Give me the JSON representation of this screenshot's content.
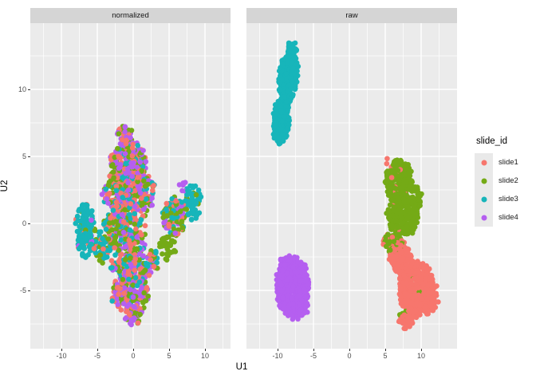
{
  "chart_data": {
    "type": "scatter",
    "title": "",
    "xlabel": "U1",
    "ylabel": "U2",
    "facets": [
      "normalized",
      "raw"
    ],
    "facet_variable_values": [
      "normalized",
      "raw"
    ],
    "x_ticks": [
      -10,
      -5,
      0,
      5,
      10
    ],
    "y_ticks": [
      10,
      5,
      0,
      -5
    ],
    "xlim": [
      -14.3,
      15.0
    ],
    "ylim": [
      -9.3,
      14.9
    ],
    "grid": "on",
    "panel_bg": "#ebebeb",
    "strip_bg": "#d5d5d5",
    "grid_color": "#ffffff",
    "tick_color": "#333333",
    "tick_label_color": "#4d4d4d",
    "point_radius_px": 3.3,
    "legend": {
      "title": "slide_id",
      "position": "right",
      "items": [
        {
          "label": "slide1",
          "color": "#f7766d"
        },
        {
          "label": "slide2",
          "color": "#74aa16"
        },
        {
          "label": "slide3",
          "color": "#17b5ba"
        },
        {
          "label": "slide4",
          "color": "#b55ff0"
        }
      ]
    },
    "series_colors": {
      "slide1": "#f7766d",
      "slide2": "#74aa16",
      "slide3": "#17b5ba",
      "slide4": "#b55ff0"
    },
    "cluster_summary": {
      "normalized": "all four slides intermixed in one large irregular blob spanning x -8.5..10, y -7.7..7.6, with a teal-dominant patch near (-6.7,-0.5), a right appendage near (5.7,0.5) and a teal tip near (8.3,1.6)",
      "raw": "slides separate by batch: slide3 teal elongated cluster x -11..-6.5 y 6..13.6; slide4 purple round cluster x -10.5..-5.4 y -7.4..-2.3; slide2 green cluster x 4.5..10.3 y -2.2..5.1; slide1 red cluster x 5..12.6 y -8..-1 with slight red/green intermixing at their boundary"
    },
    "clusters": {
      "normalized": [
        {
          "s": "slide1",
          "n": 60,
          "cx": -0.6,
          "cy": 4.6,
          "rx": 2.6,
          "ry": 1.5
        },
        {
          "s": "slide2",
          "n": 55,
          "cx": -0.6,
          "cy": 4.6,
          "rx": 2.6,
          "ry": 1.5
        },
        {
          "s": "slide3",
          "n": 25,
          "cx": -0.6,
          "cy": 4.6,
          "rx": 2.6,
          "ry": 1.5
        },
        {
          "s": "slide4",
          "n": 70,
          "cx": -0.6,
          "cy": 4.6,
          "rx": 2.6,
          "ry": 1.5
        },
        {
          "s": "slide1",
          "n": 12,
          "cx": -1.1,
          "cy": 6.6,
          "rx": 1.1,
          "ry": 0.7
        },
        {
          "s": "slide2",
          "n": 10,
          "cx": -1.1,
          "cy": 6.6,
          "rx": 1.1,
          "ry": 0.7
        },
        {
          "s": "slide4",
          "n": 14,
          "cx": -1.1,
          "cy": 6.6,
          "rx": 1.1,
          "ry": 0.7
        },
        {
          "s": "slide1",
          "n": 45,
          "cx": -2.2,
          "cy": 2.2,
          "rx": 2.2,
          "ry": 1.6
        },
        {
          "s": "slide2",
          "n": 40,
          "cx": -2.2,
          "cy": 2.2,
          "rx": 2.2,
          "ry": 1.6
        },
        {
          "s": "slide3",
          "n": 30,
          "cx": -2.2,
          "cy": 2.2,
          "rx": 2.2,
          "ry": 1.6
        },
        {
          "s": "slide4",
          "n": 45,
          "cx": -2.2,
          "cy": 2.2,
          "rx": 2.2,
          "ry": 1.6
        },
        {
          "s": "slide1",
          "n": 40,
          "cx": 1.1,
          "cy": 2.4,
          "rx": 1.9,
          "ry": 1.6
        },
        {
          "s": "slide2",
          "n": 45,
          "cx": 1.1,
          "cy": 2.4,
          "rx": 1.9,
          "ry": 1.6
        },
        {
          "s": "slide3",
          "n": 25,
          "cx": 1.1,
          "cy": 2.4,
          "rx": 1.9,
          "ry": 1.6
        },
        {
          "s": "slide4",
          "n": 35,
          "cx": 1.1,
          "cy": 2.4,
          "rx": 1.9,
          "ry": 1.6
        },
        {
          "s": "slide3",
          "n": 110,
          "cx": -6.7,
          "cy": -0.5,
          "rx": 1.4,
          "ry": 2.0
        },
        {
          "s": "slide1",
          "n": 8,
          "cx": -6.7,
          "cy": -0.5,
          "rx": 1.4,
          "ry": 2.0
        },
        {
          "s": "slide2",
          "n": 8,
          "cx": -6.7,
          "cy": -0.5,
          "rx": 1.4,
          "ry": 2.0
        },
        {
          "s": "slide4",
          "n": 6,
          "cx": -6.7,
          "cy": -0.5,
          "rx": 1.4,
          "ry": 2.0
        },
        {
          "s": "slide1",
          "n": 55,
          "cx": -1.2,
          "cy": -0.3,
          "rx": 3.2,
          "ry": 1.7
        },
        {
          "s": "slide2",
          "n": 55,
          "cx": -1.2,
          "cy": -0.3,
          "rx": 3.2,
          "ry": 1.7
        },
        {
          "s": "slide3",
          "n": 45,
          "cx": -1.2,
          "cy": -0.3,
          "rx": 3.2,
          "ry": 1.7
        },
        {
          "s": "slide4",
          "n": 45,
          "cx": -1.2,
          "cy": -0.3,
          "rx": 3.2,
          "ry": 1.7
        },
        {
          "s": "slide1",
          "n": 22,
          "cx": 5.7,
          "cy": 0.5,
          "rx": 1.6,
          "ry": 1.5
        },
        {
          "s": "slide2",
          "n": 40,
          "cx": 5.7,
          "cy": 0.5,
          "rx": 1.6,
          "ry": 1.5
        },
        {
          "s": "slide3",
          "n": 22,
          "cx": 5.7,
          "cy": 0.5,
          "rx": 1.6,
          "ry": 1.5
        },
        {
          "s": "slide4",
          "n": 18,
          "cx": 5.7,
          "cy": 0.5,
          "rx": 1.6,
          "ry": 1.5
        },
        {
          "s": "slide3",
          "n": 55,
          "cx": 8.3,
          "cy": 1.6,
          "rx": 1.1,
          "ry": 1.4
        },
        {
          "s": "slide2",
          "n": 8,
          "cx": 8.3,
          "cy": 1.6,
          "rx": 1.1,
          "ry": 1.4
        },
        {
          "s": "slide4",
          "n": 6,
          "cx": 7.0,
          "cy": 2.8,
          "rx": 0.6,
          "ry": 0.4
        },
        {
          "s": "slide2",
          "n": 35,
          "cx": 4.8,
          "cy": -1.8,
          "rx": 1.2,
          "ry": 1.0
        },
        {
          "s": "slide1",
          "n": 50,
          "cx": 0.2,
          "cy": -2.9,
          "rx": 3.3,
          "ry": 1.5
        },
        {
          "s": "slide2",
          "n": 50,
          "cx": 0.2,
          "cy": -2.9,
          "rx": 3.3,
          "ry": 1.5
        },
        {
          "s": "slide3",
          "n": 50,
          "cx": 0.2,
          "cy": -2.9,
          "rx": 3.3,
          "ry": 1.5
        },
        {
          "s": "slide4",
          "n": 40,
          "cx": 0.2,
          "cy": -2.9,
          "rx": 3.3,
          "ry": 1.5
        },
        {
          "s": "slide1",
          "n": 55,
          "cx": -0.4,
          "cy": -5.3,
          "rx": 2.6,
          "ry": 1.5
        },
        {
          "s": "slide2",
          "n": 45,
          "cx": -0.4,
          "cy": -5.3,
          "rx": 2.6,
          "ry": 1.5
        },
        {
          "s": "slide3",
          "n": 15,
          "cx": -0.4,
          "cy": -5.3,
          "rx": 2.6,
          "ry": 1.5
        },
        {
          "s": "slide4",
          "n": 60,
          "cx": -0.4,
          "cy": -5.3,
          "rx": 2.6,
          "ry": 1.5
        },
        {
          "s": "slide1",
          "n": 15,
          "cx": 0.1,
          "cy": -6.9,
          "rx": 1.2,
          "ry": 0.8
        },
        {
          "s": "slide2",
          "n": 10,
          "cx": 0.1,
          "cy": -6.9,
          "rx": 1.2,
          "ry": 0.8
        },
        {
          "s": "slide4",
          "n": 20,
          "cx": 0.1,
          "cy": -6.9,
          "rx": 1.2,
          "ry": 0.8
        },
        {
          "s": "slide3",
          "n": 35,
          "cx": -4.4,
          "cy": -1.8,
          "rx": 1.3,
          "ry": 1.2
        },
        {
          "s": "slide2",
          "n": 15,
          "cx": -4.4,
          "cy": -1.8,
          "rx": 1.3,
          "ry": 1.2
        },
        {
          "s": "slide1",
          "n": 10,
          "cx": -4.4,
          "cy": -1.8,
          "rx": 1.3,
          "ry": 1.2
        }
      ],
      "raw": [
        {
          "s": "slide3",
          "n": 260,
          "cx": -8.5,
          "cy": 10.9,
          "rx": 1.25,
          "ry": 1.95,
          "rot": -15
        },
        {
          "s": "slide3",
          "n": 240,
          "cx": -9.5,
          "cy": 7.7,
          "rx": 1.15,
          "ry": 1.75,
          "rot": -15
        },
        {
          "s": "slide3",
          "n": 50,
          "cx": -8.1,
          "cy": 13.0,
          "rx": 0.7,
          "ry": 0.55
        },
        {
          "s": "slide3",
          "n": 2,
          "cx": -7.6,
          "cy": -2.8,
          "rx": 0.3,
          "ry": 0.2
        },
        {
          "s": "slide4",
          "n": 420,
          "cx": -7.9,
          "cy": -4.7,
          "rx": 2.3,
          "ry": 2.2
        },
        {
          "s": "slide4",
          "n": 80,
          "cx": -8.6,
          "cy": -3.2,
          "rx": 1.2,
          "ry": 0.9
        },
        {
          "s": "slide4",
          "n": 60,
          "cx": -6.6,
          "cy": -5.8,
          "rx": 1.0,
          "ry": 1.0
        },
        {
          "s": "slide4",
          "n": 50,
          "cx": -7.4,
          "cy": -6.6,
          "rx": 1.0,
          "ry": 0.6
        },
        {
          "s": "slide2",
          "n": 230,
          "cx": 6.9,
          "cy": 3.2,
          "rx": 1.9,
          "ry": 1.5
        },
        {
          "s": "slide2",
          "n": 230,
          "cx": 7.4,
          "cy": 0.6,
          "rx": 2.2,
          "ry": 1.6
        },
        {
          "s": "slide2",
          "n": 60,
          "cx": 6.1,
          "cy": -1.4,
          "rx": 1.3,
          "ry": 0.8
        },
        {
          "s": "slide2",
          "n": 40,
          "cx": 9.2,
          "cy": 1.8,
          "rx": 0.8,
          "ry": 1.0
        },
        {
          "s": "slide2",
          "n": 10,
          "cx": 8.8,
          "cy": -4.6,
          "rx": 1.6,
          "ry": 1.2
        },
        {
          "s": "slide2",
          "n": 4,
          "cx": 7.8,
          "cy": -6.9,
          "rx": 0.8,
          "ry": 0.5
        },
        {
          "s": "slide1",
          "n": 200,
          "cx": 7.2,
          "cy": -2.6,
          "rx": 1.7,
          "ry": 1.2,
          "rot": -25
        },
        {
          "s": "slide1",
          "n": 380,
          "cx": 9.3,
          "cy": -4.9,
          "rx": 2.5,
          "ry": 2.1
        },
        {
          "s": "slide1",
          "n": 60,
          "cx": 11.3,
          "cy": -5.6,
          "rx": 1.2,
          "ry": 1.2
        },
        {
          "s": "slide1",
          "n": 40,
          "cx": 8.0,
          "cy": -7.2,
          "rx": 1.2,
          "ry": 0.7
        },
        {
          "s": "slide1",
          "n": 12,
          "cx": 6.4,
          "cy": 2.9,
          "rx": 1.5,
          "ry": 1.5
        },
        {
          "s": "slide1",
          "n": 25,
          "cx": 6.3,
          "cy": -1.5,
          "rx": 1.6,
          "ry": 1.0
        },
        {
          "s": "slide1",
          "n": 2,
          "cx": 5.3,
          "cy": 4.6,
          "rx": 0.4,
          "ry": 0.3
        }
      ]
    }
  }
}
